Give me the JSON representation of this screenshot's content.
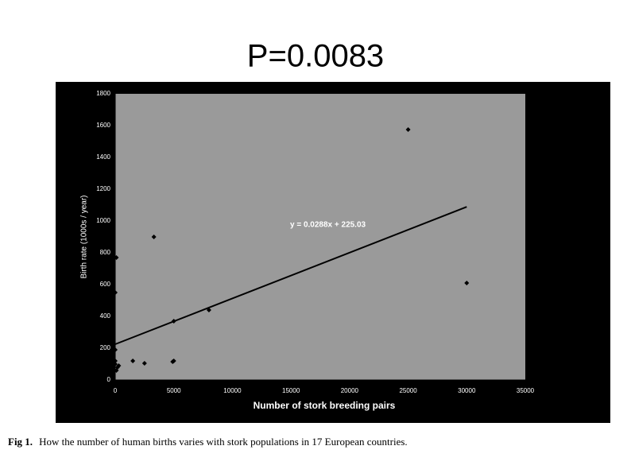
{
  "chart_data": {
    "type": "scatter",
    "title": "P=0.0083",
    "x_label": "Number of stork breeding pairs",
    "y_label": "Birth rate (1000s / year)",
    "x": [
      25000,
      30000,
      3300,
      100,
      0,
      8000,
      5000,
      5000,
      1500,
      2500,
      300,
      0,
      0,
      100,
      200,
      0,
      4900
    ],
    "values": [
      1575,
      610,
      900,
      770,
      550,
      440,
      370,
      120,
      120,
      105,
      90,
      190,
      120,
      60,
      80,
      100,
      115
    ],
    "color": "#000000",
    "trendline": {
      "x": [
        0,
        30000
      ],
      "values": [
        225.03,
        1089.03
      ],
      "label": "y = 0.0288x + 225.03"
    },
    "xlim": [
      0,
      35000
    ],
    "xticks": [
      0,
      5000,
      10000,
      15000,
      20000,
      25000,
      30000,
      35000
    ],
    "ylim": [
      0,
      1800
    ],
    "yticks": [
      0,
      200,
      400,
      600,
      800,
      1000,
      1200,
      1400,
      1600,
      1800
    ],
    "grid": false,
    "caption_label": "Fig 1.",
    "caption": "How the number of human births varies with stork populations in 17 European countries."
  }
}
